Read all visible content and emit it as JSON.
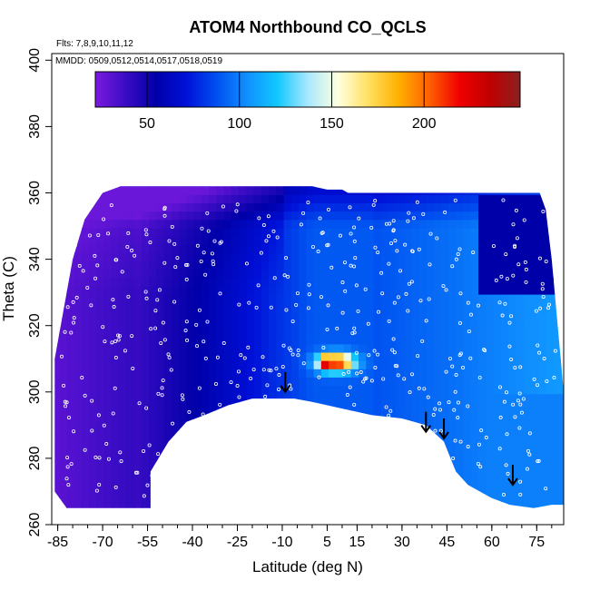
{
  "chart_data": {
    "type": "heatmap",
    "title": "ATOM4 Northbound CO_QCLS",
    "subtitle_flights": "Flts: 7,8,9,10,11,12",
    "subtitle_dates": "MMDD: 0509,0512,0514,0517,0518,0519",
    "xlabel": "Latitude (deg N)",
    "ylabel": "Theta (C)",
    "xlim": [
      -87,
      84
    ],
    "ylim": [
      260,
      402
    ],
    "x_ticks": [
      -85,
      -70,
      -55,
      -40,
      -25,
      -10,
      5,
      15,
      30,
      45,
      60,
      75
    ],
    "x_tick_labels": [
      "-85",
      "-70",
      "-55",
      "-40",
      "-25",
      "-10",
      "5",
      "15",
      "30",
      "45",
      "60",
      "75"
    ],
    "y_ticks": [
      260,
      280,
      300,
      320,
      340,
      360,
      380,
      400
    ],
    "y_tick_labels": [
      "260",
      "280",
      "300",
      "320",
      "340",
      "360",
      "380",
      "400"
    ],
    "colorbar": {
      "min": 22,
      "max": 252,
      "ticks": [
        50,
        100,
        150,
        200
      ],
      "tick_labels": [
        "50",
        "100",
        "150",
        "200"
      ],
      "colors": [
        "#7a1ae0",
        "#3a0cc4",
        "#0000a8",
        "#0010d8",
        "#0050f0",
        "#1090ff",
        "#10c8ff",
        "#a8e8ff",
        "#ffffe0",
        "#ffe060",
        "#ffb000",
        "#ff6000",
        "#f00000",
        "#c00000",
        "#8a2020"
      ]
    },
    "field_description": "CO mixing ratio curtain: ~30-40 ppb over southern polar region, 60-110 ppb in tropics and northern mid-latitudes, local maximum ~200 ppb near 5N at theta ~309",
    "lower_boundary": [
      [
        -86,
        270
      ],
      [
        -82,
        265
      ],
      [
        -54,
        265
      ],
      [
        -54,
        276
      ],
      [
        -48,
        285
      ],
      [
        -42,
        291
      ],
      [
        -36,
        293
      ],
      [
        -28,
        296
      ],
      [
        -20,
        298
      ],
      [
        -12,
        298
      ],
      [
        -6,
        298
      ],
      [
        0,
        297
      ],
      [
        10,
        295
      ],
      [
        20,
        293
      ],
      [
        30,
        292
      ],
      [
        38,
        290
      ],
      [
        44,
        285
      ],
      [
        48,
        276
      ],
      [
        52,
        272
      ],
      [
        56,
        270
      ],
      [
        60,
        268
      ],
      [
        66,
        266
      ],
      [
        74,
        265
      ],
      [
        80,
        266
      ]
    ],
    "upper_boundary": [
      [
        -86,
        310
      ],
      [
        -84,
        320
      ],
      [
        -80,
        340
      ],
      [
        -76,
        352
      ],
      [
        -70,
        360
      ],
      [
        -64,
        362
      ],
      [
        -40,
        362
      ],
      [
        -30,
        362
      ],
      [
        -10,
        362
      ],
      [
        0,
        362
      ],
      [
        5,
        361
      ],
      [
        10,
        361
      ],
      [
        12,
        360
      ],
      [
        60,
        360
      ],
      [
        76,
        360
      ],
      [
        78,
        355
      ],
      [
        80,
        340
      ],
      [
        82,
        320
      ],
      [
        84,
        300
      ],
      [
        84,
        266
      ]
    ],
    "arrows": [
      {
        "lat": -9,
        "theta": 300
      },
      {
        "lat": 38,
        "theta": 288
      },
      {
        "lat": 44,
        "theta": 286
      },
      {
        "lat": 67,
        "theta": 272
      }
    ]
  }
}
